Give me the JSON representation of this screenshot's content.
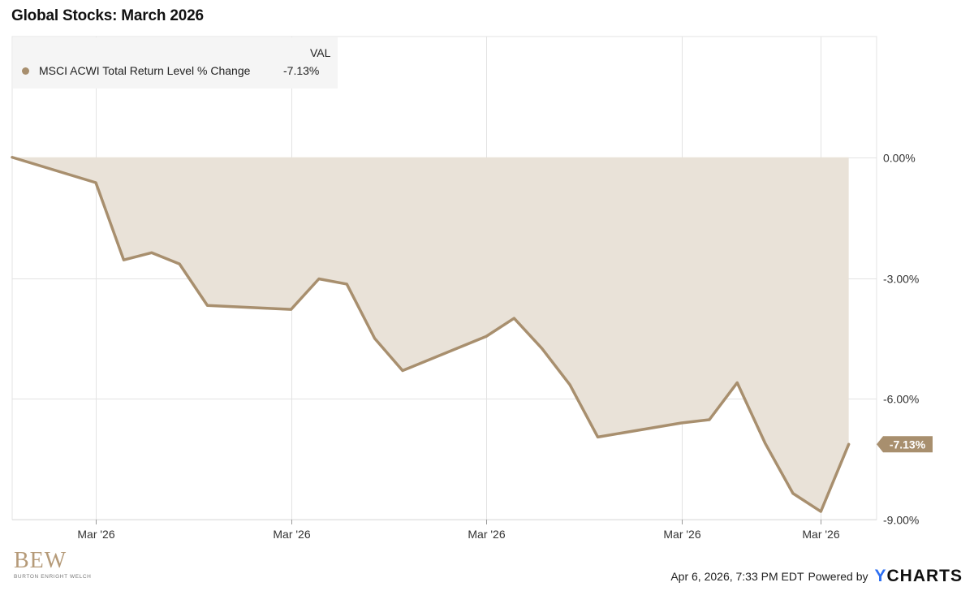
{
  "title": "Global Stocks: March 2026",
  "legend": {
    "header": "VAL",
    "entry_name": "MSCI ACWI Total Return Level % Change",
    "entry_value": "-7.13%"
  },
  "colors": {
    "series": "#a88f6e",
    "fill": "#e9e2d8",
    "grid": "#e3e3e3",
    "label_bg": "#a88f6e"
  },
  "logo": {
    "mark": "BEW",
    "subtitle": "BURTON ENRIGHT WELCH"
  },
  "footer": {
    "timestamp": "Apr 6, 2026, 7:33 PM EDT",
    "powered_by": "Powered by",
    "brand_y": "Y",
    "brand_rest": "CHARTS"
  },
  "chart_data": {
    "type": "area",
    "x": [
      1,
      4,
      5,
      6,
      7,
      8,
      11,
      12,
      13,
      14,
      15,
      18,
      19,
      20,
      21,
      22,
      25,
      26,
      27,
      28,
      29,
      30,
      31
    ],
    "series": [
      {
        "name": "MSCI ACWI Total Return Level % Change",
        "values": [
          0.0,
          -0.63,
          -2.55,
          -2.37,
          -2.65,
          -3.68,
          -3.78,
          -3.02,
          -3.15,
          -4.5,
          -5.3,
          -4.45,
          -4.0,
          -4.75,
          -5.65,
          -6.95,
          -6.6,
          -6.52,
          -5.6,
          -7.1,
          -8.35,
          -8.8,
          -7.13
        ]
      }
    ],
    "x_ticks": [
      4,
      11,
      18,
      25,
      30
    ],
    "x_tick_labels": [
      "Mar '26",
      "Mar '26",
      "Mar '26",
      "Mar '26",
      "Mar '26"
    ],
    "xlim": [
      1,
      32
    ],
    "y_ticks": [
      0,
      -3,
      -6,
      -9
    ],
    "y_tick_labels": [
      "0.00%",
      "-3.00%",
      "-6.00%",
      "-9.00%"
    ],
    "ylim": [
      -9.0,
      3.0
    ],
    "last_value_label": "-7.13%",
    "grid": true,
    "legend_position": "top-left"
  }
}
